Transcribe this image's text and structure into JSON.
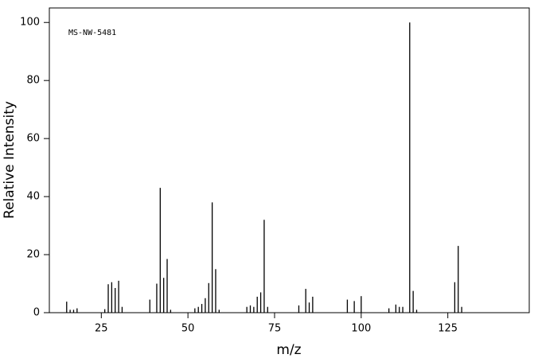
{
  "chart_data": {
    "type": "stem",
    "annotation": "MS-NW-5481",
    "x_label": "m/z",
    "y_label": "Relative Intensity",
    "x": [
      15,
      16,
      17,
      18,
      26,
      27,
      28,
      29,
      30,
      31,
      39,
      41,
      42,
      43,
      44,
      45,
      52,
      53,
      54,
      55,
      56,
      57,
      58,
      59,
      67,
      68,
      69,
      70,
      71,
      72,
      73,
      82,
      84,
      85,
      86,
      96,
      98,
      100,
      108,
      110,
      111,
      112,
      114,
      115,
      116,
      127,
      128,
      129
    ],
    "values": [
      3.8,
      1,
      1,
      1.5,
      1.2,
      9.8,
      10.5,
      8.5,
      11,
      2,
      4.5,
      10,
      43,
      12,
      18.5,
      1,
      1.5,
      2,
      3,
      5,
      10.2,
      38,
      15,
      1,
      2,
      2.5,
      2,
      5.5,
      7,
      32,
      2,
      2.5,
      8.2,
      3.5,
      5.5,
      4.5,
      4,
      5.7,
      1.5,
      2.8,
      2,
      2,
      100,
      7.5,
      1,
      10.5,
      23,
      2
    ],
    "color": "#000000",
    "xlim": [
      10,
      148.5
    ],
    "ylim": [
      0,
      105
    ],
    "xticks": [
      25,
      50,
      75,
      100,
      125
    ],
    "yticks": [
      0,
      20,
      40,
      60,
      80,
      100
    ]
  }
}
